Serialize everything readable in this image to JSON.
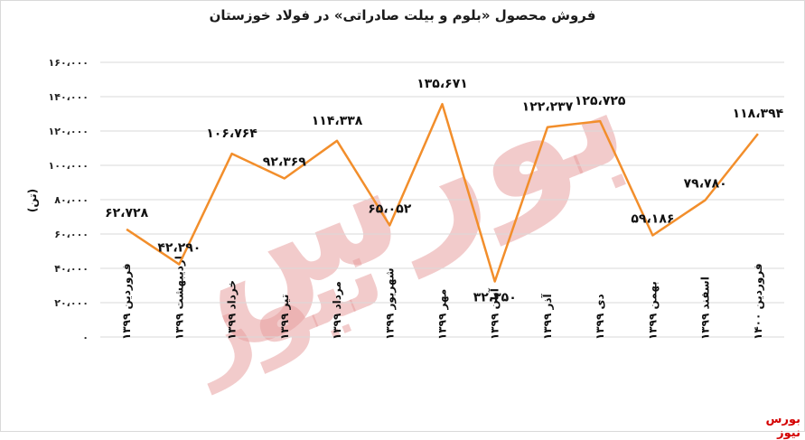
{
  "chart_data": {
    "type": "line",
    "title": "فروش محصول «بلوم و بیلت صادراتی» در فولاد خوزستان",
    "ylabel": "(تن)",
    "xlabel": "",
    "ylim": [
      0,
      160000
    ],
    "yticks": [
      0,
      20000,
      40000,
      60000,
      80000,
      100000,
      120000,
      140000,
      160000
    ],
    "ytick_labels": [
      "۰",
      "۲۰،۰۰۰",
      "۴۰،۰۰۰",
      "۶۰،۰۰۰",
      "۸۰،۰۰۰",
      "۱۰۰،۰۰۰",
      "۱۲۰،۰۰۰",
      "۱۴۰،۰۰۰",
      "۱۶۰،۰۰۰"
    ],
    "grid": true,
    "legend": "none",
    "line_color": "#f28e2b",
    "categories": [
      "فروردین ۱۳۹۹",
      "اردیبهشت ۱۳۹۹",
      "خرداد ۱۳۹۹",
      "تیر ۱۳۹۹",
      "مرداد ۱۳۹۹",
      "شهریور ۱۳۹۹",
      "مهر ۱۳۹۹",
      "آبان ۱۳۹۹",
      "آذر ۱۳۹۹",
      "دی ۱۳۹۹",
      "بهمن ۱۳۹۹",
      "اسفند ۱۳۹۹",
      "فروردین ۱۴۰۰"
    ],
    "values": [
      62728,
      42290,
      106764,
      92369,
      114338,
      65052,
      135671,
      32350,
      122237,
      125725,
      59186,
      79780,
      118394
    ],
    "data_labels": [
      "۶۲،۷۲۸",
      "۴۲،۲۹۰",
      "۱۰۶،۷۶۴",
      "۹۲،۳۶۹",
      "۱۱۴،۳۳۸",
      "۶۵،۰۵۲",
      "۱۳۵،۶۷۱",
      "۳۲،۳۵۰",
      "۱۲۲،۲۳۷",
      "۱۲۵،۷۲۵",
      "۵۹،۱۸۶",
      "۷۹،۷۸۰",
      "۱۱۸،۳۹۴"
    ]
  },
  "source": "بورس نیوز",
  "watermark": {
    "top": "بورس",
    "bottom": "نیوز",
    "color": "#e8a0a0"
  },
  "source_color": "#d40000"
}
